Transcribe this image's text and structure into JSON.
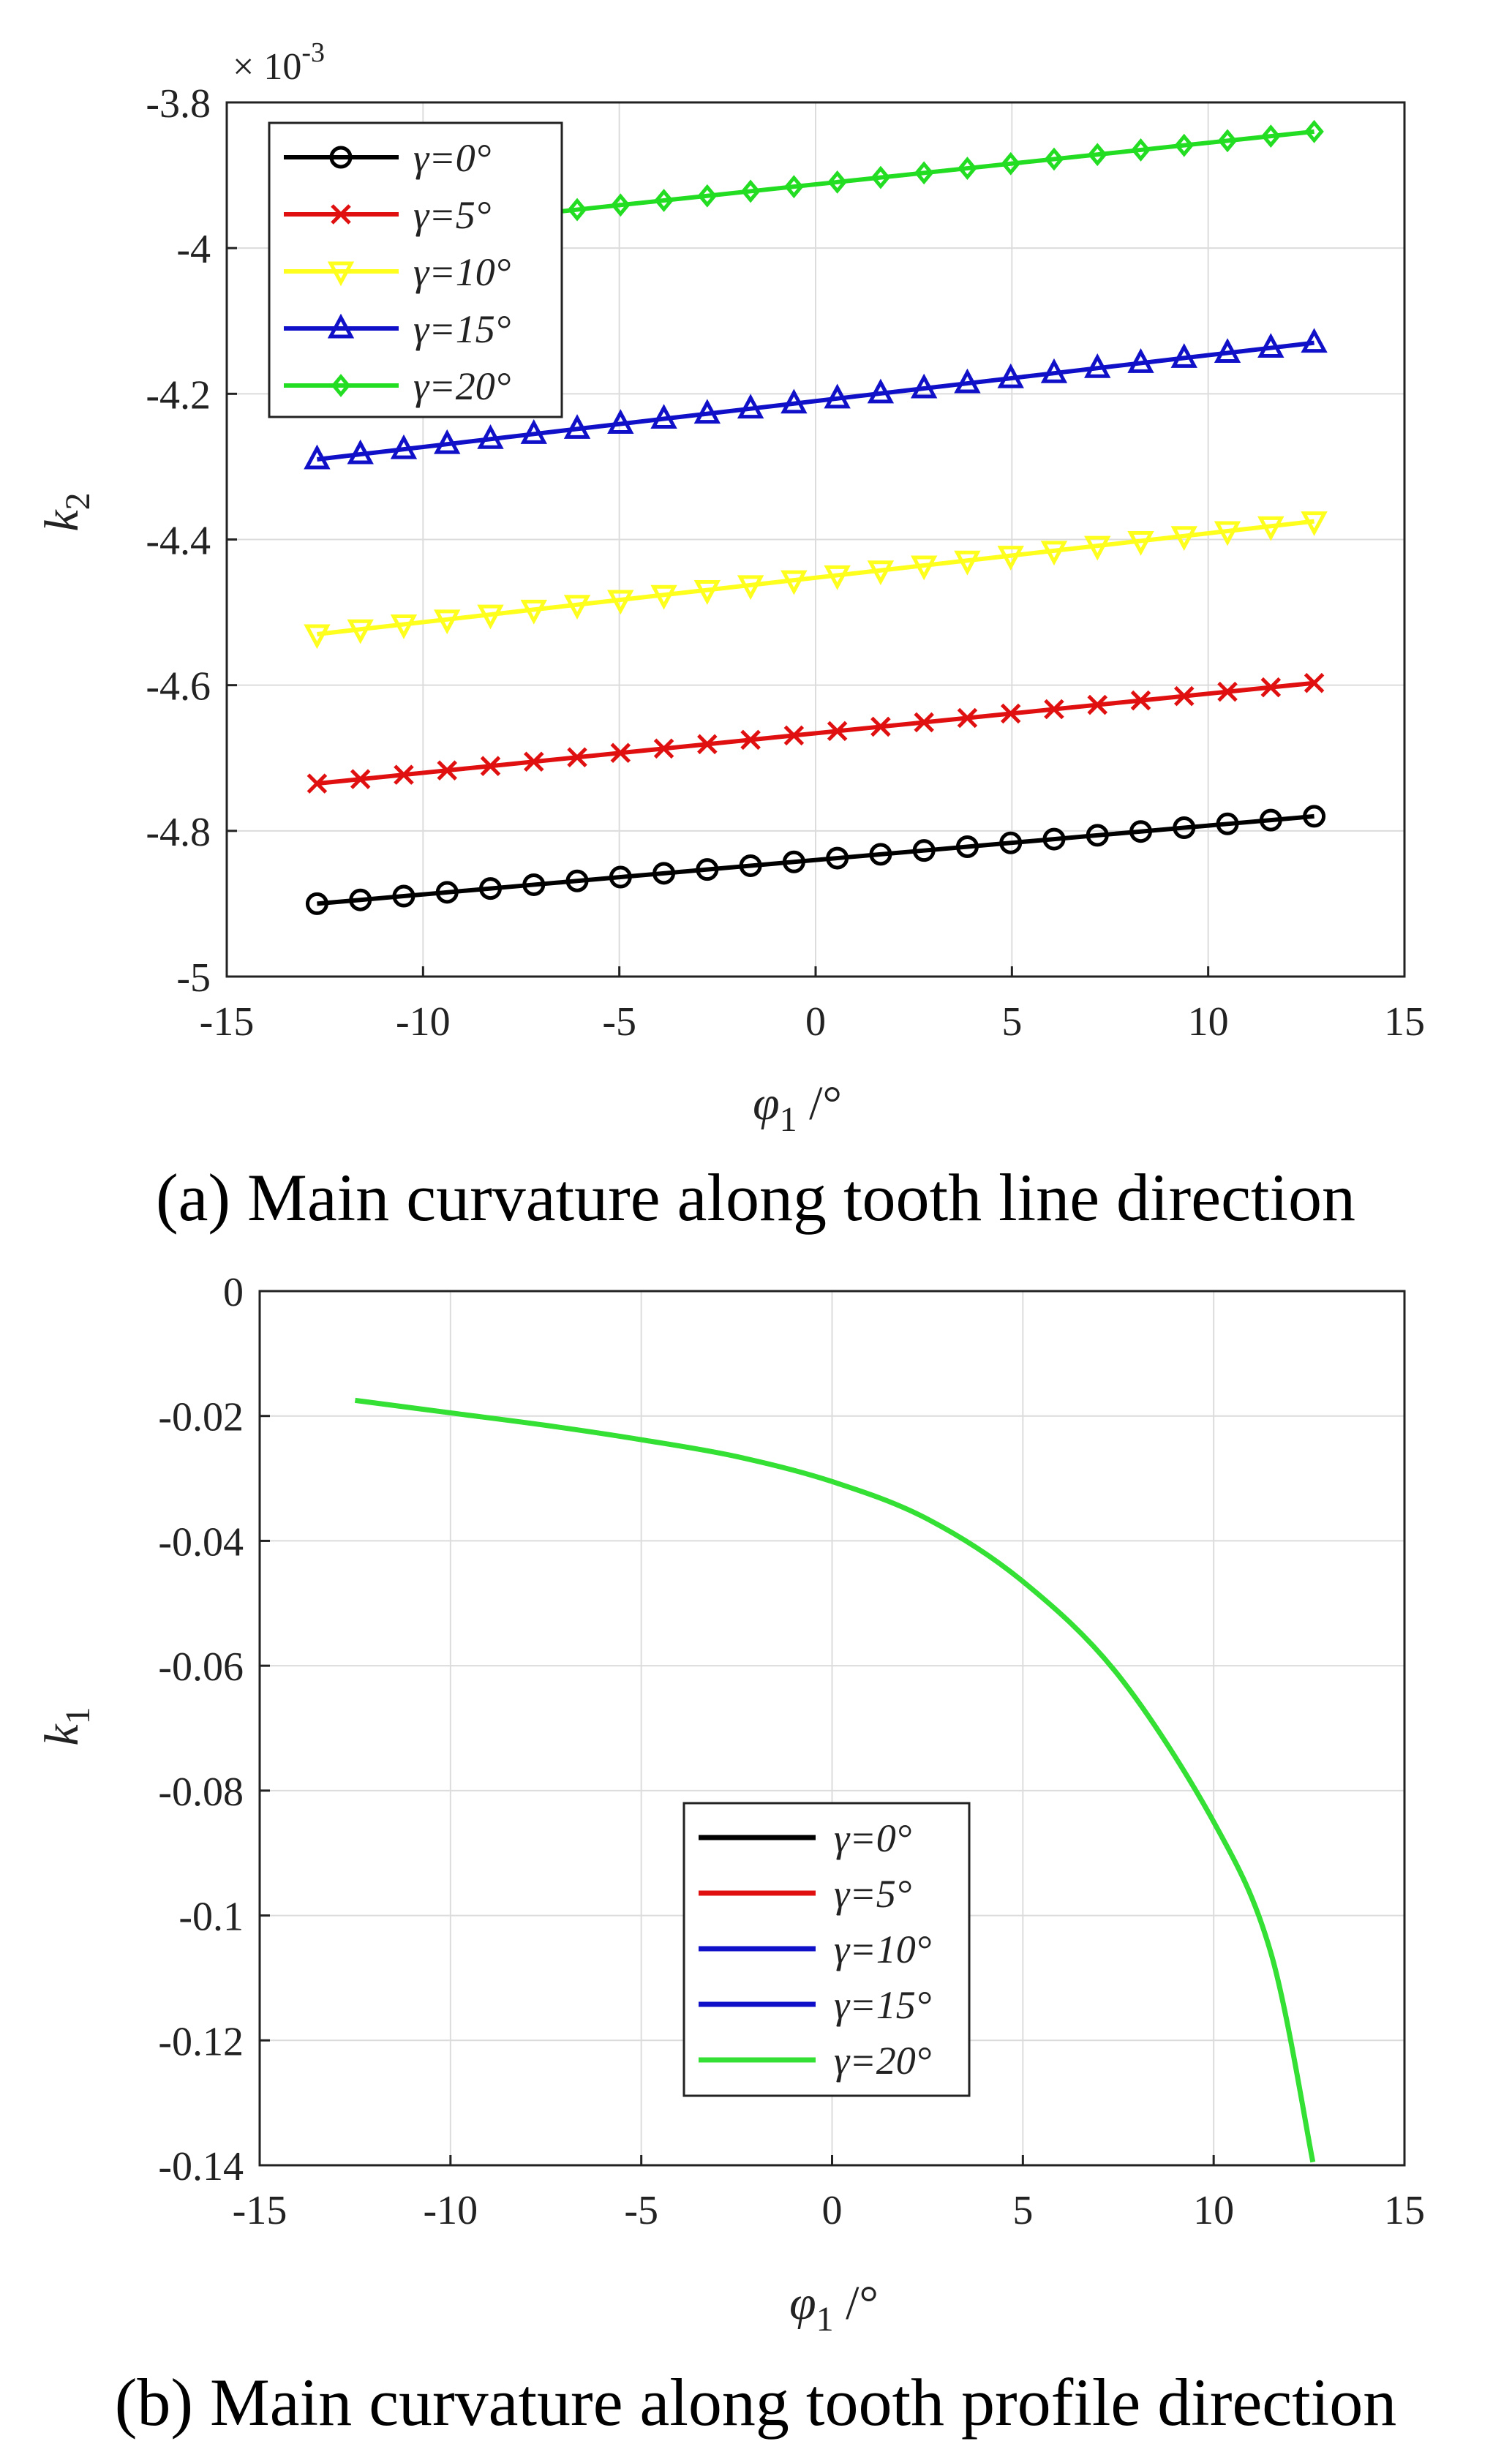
{
  "chart_data": [
    {
      "type": "line",
      "panel": "a",
      "caption": "(a) Main curvature along tooth line direction",
      "xlabel_symbol": "φ",
      "xlabel_sub": "1",
      "xlabel_unit": " /°",
      "ylabel_symbol": "k",
      "ylabel_sub": "2",
      "y_multiplier": "× 10",
      "y_multiplier_exp": "-3",
      "xlim": [
        -15,
        15
      ],
      "ylim": [
        -5,
        -3.8
      ],
      "xticks": [
        -15,
        -10,
        -5,
        0,
        5,
        10,
        15
      ],
      "yticks": [
        -5,
        -4.8,
        -4.6,
        -4.4,
        -4.2,
        -4,
        -3.8
      ],
      "grid": true,
      "legend_position": "top-left",
      "x_range": [
        -12.7,
        12.7
      ],
      "n_points": 24,
      "series": [
        {
          "name": "γ=0°",
          "color": "#000000",
          "marker": "circle",
          "y_start": -4.9,
          "y_end": -4.78
        },
        {
          "name": "γ=5°",
          "color": "#e01010",
          "marker": "x",
          "y_start": -4.735,
          "y_end": -4.597
        },
        {
          "name": "γ=10°",
          "color": "#ffff1e",
          "marker": "triangle-down",
          "y_start": -4.53,
          "y_end": -4.375
        },
        {
          "name": "γ=15°",
          "color": "#1010c8",
          "marker": "triangle-up",
          "y_start": -4.29,
          "y_end": -4.13
        },
        {
          "name": "γ=20°",
          "color": "#22dd22",
          "marker": "diamond",
          "y_start": -3.985,
          "y_end": -3.84
        }
      ]
    },
    {
      "type": "line",
      "panel": "b",
      "caption": "(b) Main curvature along tooth profile direction",
      "xlabel_symbol": "φ",
      "xlabel_sub": "1",
      "xlabel_unit": " /°",
      "ylabel_symbol": "k",
      "ylabel_sub": "1",
      "xlim": [
        -15,
        15
      ],
      "ylim": [
        -0.14,
        0
      ],
      "xticks": [
        -15,
        -10,
        -5,
        0,
        5,
        10,
        15
      ],
      "yticks": [
        -0.14,
        -0.12,
        -0.1,
        -0.08,
        -0.06,
        -0.04,
        -0.02,
        0
      ],
      "ytick_labels": [
        "-0.14",
        "-0.12",
        "-0.1",
        "-0.08",
        "-0.06",
        "-0.04",
        "-0.02",
        "0"
      ],
      "grid": true,
      "legend_position": "lower-center",
      "legend": [
        {
          "name": "γ=0°",
          "color": "#000000"
        },
        {
          "name": "γ=5°",
          "color": "#e01010"
        },
        {
          "name": "γ=10°",
          "color": "#1010c8"
        },
        {
          "name": "γ=15°",
          "color": "#1010c8"
        },
        {
          "name": "γ=20°",
          "color": "#33e033"
        }
      ],
      "visible_series": {
        "name": "γ=20°",
        "color": "#33e033",
        "x": [
          -12.5,
          -10,
          -7.5,
          -5,
          -2.5,
          0,
          2.5,
          5,
          7.5,
          10,
          11.5,
          12.6
        ],
        "y": [
          -0.0175,
          -0.0195,
          -0.0215,
          -0.0238,
          -0.0265,
          -0.0305,
          -0.0365,
          -0.0465,
          -0.0615,
          -0.085,
          -0.106,
          -0.1395
        ]
      }
    }
  ]
}
